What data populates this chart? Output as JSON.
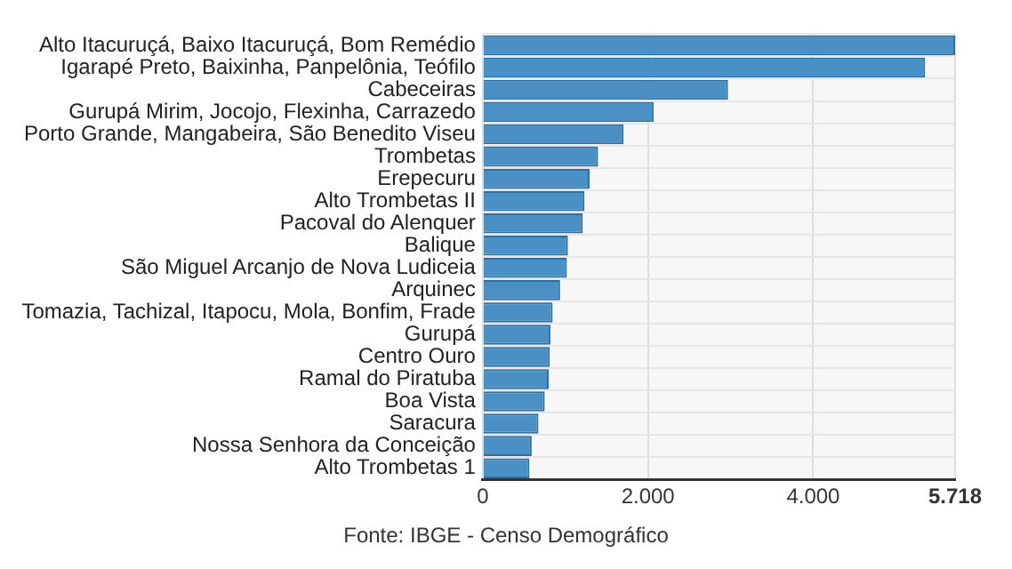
{
  "chart_data": {
    "type": "bar",
    "orientation": "horizontal",
    "categories": [
      "Alto Itacuruçá, Baixo Itacuruçá, Bom Remédio",
      "Igarapé Preto, Baixinha, Panpelônia, Teófilo",
      "Cabeceiras",
      "Gurupá Mirim, Jocojo, Flexinha, Carrazedo",
      "Porto Grande, Mangabeira, São Benedito Viseu",
      "Trombetas",
      "Erepecuru",
      "Alto Trombetas II",
      "Pacoval do Alenquer",
      "Balique",
      "São Miguel Arcanjo de Nova Ludiceia",
      "Arquinec",
      "Tomazia, Tachizal, Itapocu, Mola, Bonfim, Frade",
      "Gurupá",
      "Centro Ouro",
      "Ramal do Piratuba",
      "Boa Vista",
      "Saracura",
      "Nossa Senhora da Conceição",
      "Alto Trombetas 1"
    ],
    "values": [
      5718,
      5355,
      2969,
      2070,
      1705,
      1396,
      1293,
      1231,
      1210,
      1031,
      1018,
      936,
      846,
      819,
      812,
      798,
      750,
      674,
      592,
      565
    ],
    "color": "#4a90c4",
    "xlim": [
      0,
      5718
    ],
    "xticks": [
      0,
      {
        "value": 2000,
        "label": "2.000"
      },
      {
        "value": 4000,
        "label": "4.000"
      },
      {
        "value": 5718,
        "label": "5.718"
      }
    ],
    "grid": true,
    "annotations": [
      "Fonte: IBGE - Censo Demográfico"
    ]
  }
}
